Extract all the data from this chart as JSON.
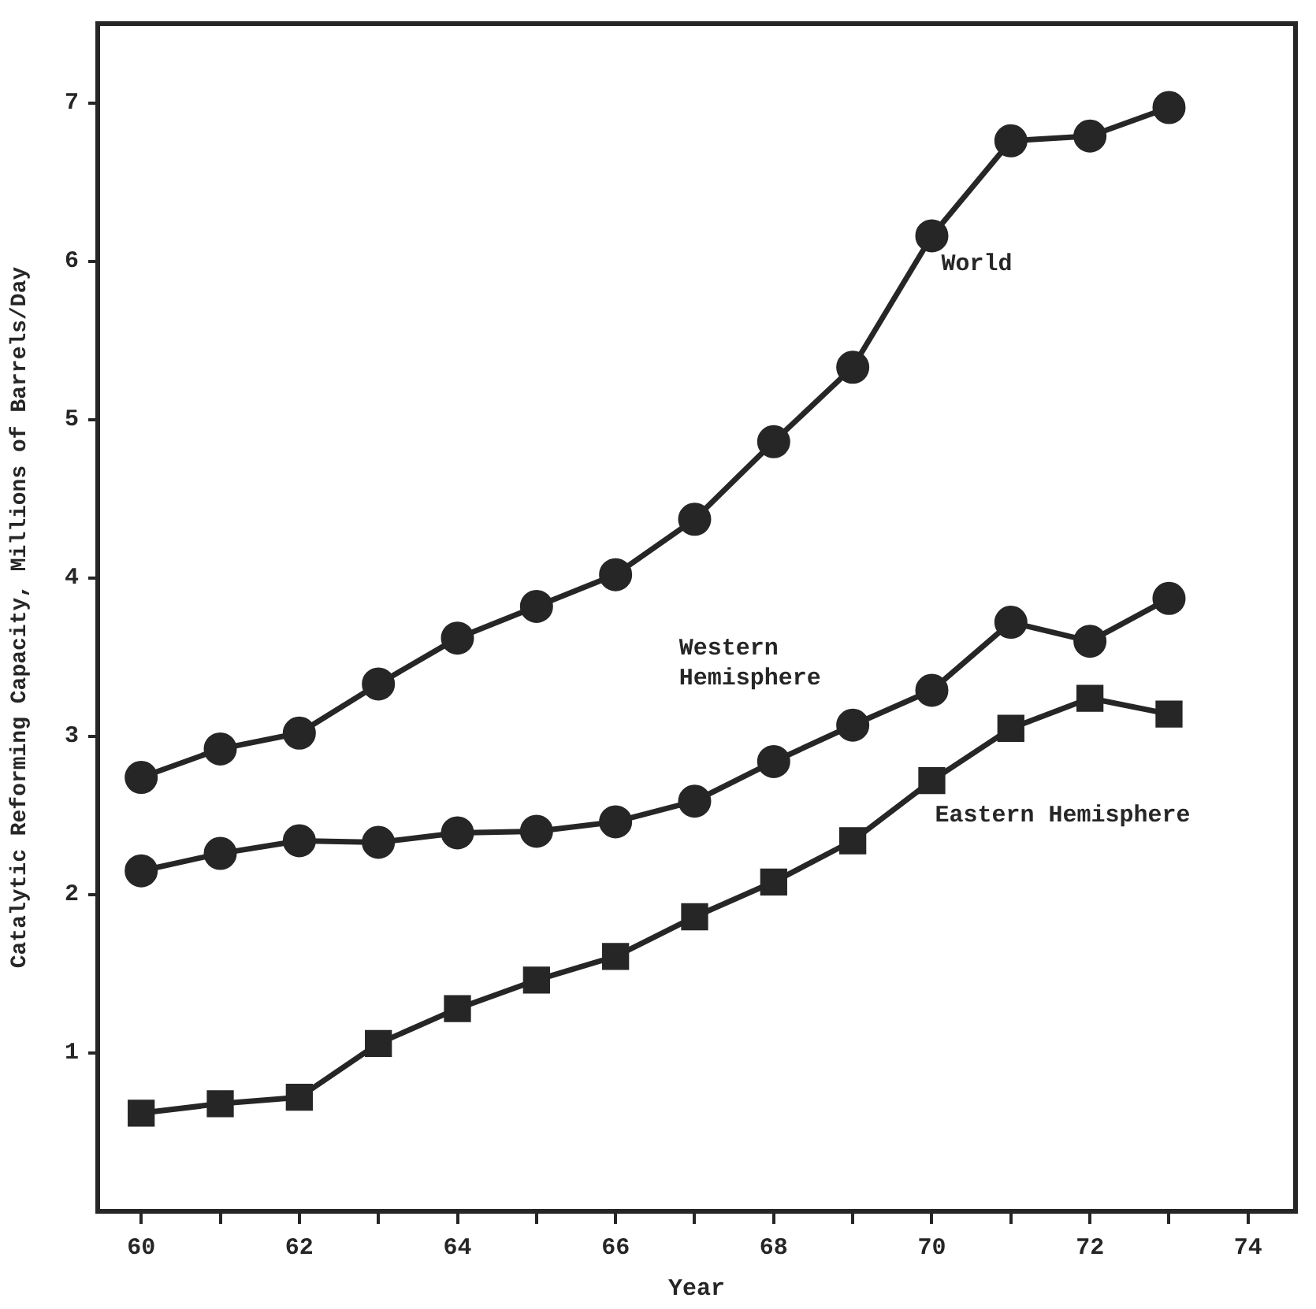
{
  "chart_data": {
    "type": "line",
    "xlabel": "Year",
    "ylabel": "Catalytic Reforming Capacity, Millions of Barrels/Day",
    "x": [
      60,
      61,
      62,
      63,
      64,
      65,
      66,
      67,
      68,
      69,
      70,
      71,
      72,
      73
    ],
    "xlim": [
      59.45,
      74.6
    ],
    "xticks": [
      60,
      {
        "value": 61,
        "label": null
      },
      62,
      {
        "value": 63,
        "label": null
      },
      64,
      {
        "value": 65,
        "label": null
      },
      66,
      {
        "value": 67,
        "label": null
      },
      68,
      {
        "value": 69,
        "label": null
      },
      70,
      {
        "value": 71,
        "label": null
      },
      72,
      {
        "value": 73,
        "label": null
      },
      74
    ],
    "ylim": [
      0,
      7.5
    ],
    "yticks": [
      1,
      2,
      3,
      4,
      5,
      6,
      7
    ],
    "grid": false,
    "legend": false,
    "line_style": "solid",
    "series": [
      {
        "name": "World",
        "color": "#262626",
        "marker": "circle",
        "values": [
          2.74,
          2.92,
          3.02,
          3.33,
          3.62,
          3.82,
          4.02,
          4.37,
          4.86,
          5.33,
          6.16,
          6.76,
          6.79,
          6.97
        ]
      },
      {
        "name": "Western Hemisphere",
        "color": "#262626",
        "marker": "circle",
        "values": [
          2.15,
          2.26,
          2.34,
          2.33,
          2.39,
          2.4,
          2.46,
          2.59,
          2.84,
          3.07,
          3.29,
          3.72,
          3.6,
          3.87
        ]
      },
      {
        "name": "Eastern Hemisphere",
        "color": "#262626",
        "marker": "square",
        "values": [
          0.62,
          0.68,
          0.72,
          1.06,
          1.28,
          1.46,
          1.61,
          1.86,
          2.08,
          2.34,
          2.72,
          3.05,
          3.24,
          3.14
        ]
      }
    ]
  }
}
